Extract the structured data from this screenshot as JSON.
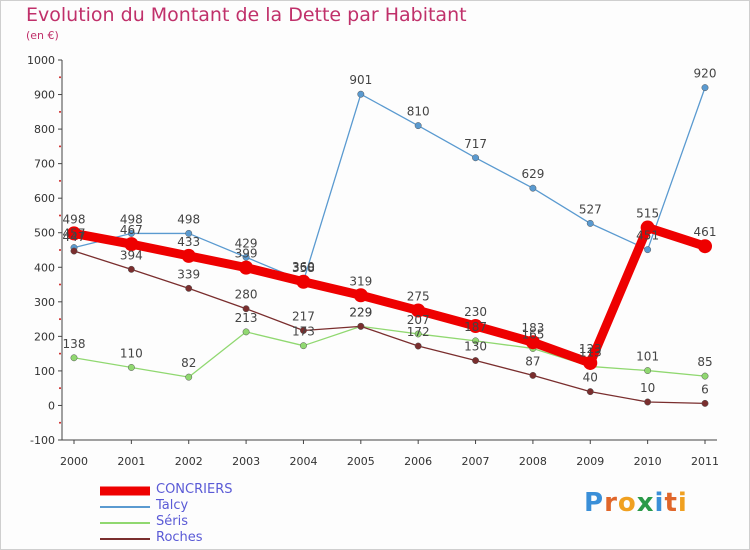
{
  "title": "Evolution du Montant de la Dette par Habitant",
  "subtitle": "(en €)",
  "logo": {
    "text": "Proxiti",
    "colors": [
      "#3a8fd8",
      "#e0662a",
      "#f0a020",
      "#2a9a48",
      "#3a8fd8",
      "#e0662a",
      "#f0a020"
    ]
  },
  "chart_data": {
    "type": "line",
    "categories": [
      "2000",
      "2001",
      "2002",
      "2003",
      "2004",
      "2005",
      "2006",
      "2007",
      "2008",
      "2009",
      "2010",
      "2011"
    ],
    "ylim": [
      -100,
      1000
    ],
    "yticks": [
      "-100",
      "0",
      "100",
      "200",
      "300",
      "400",
      "500",
      "600",
      "700",
      "800",
      "900",
      "1000"
    ],
    "xlabel": "",
    "ylabel": "",
    "grid": false,
    "legend_position": "bottom-left",
    "series": [
      {
        "name": "CONCRIERS",
        "color": "#ee0000",
        "values": [
          498,
          467,
          433,
          399,
          358,
          319,
          275,
          230,
          183,
          123,
          515,
          461
        ],
        "labels": [
          "498",
          "467",
          "433",
          "399",
          "358",
          "319",
          "275",
          "230",
          "183",
          "123",
          "515",
          "461"
        ]
      },
      {
        "name": "Talcy",
        "color": "#5a9ad0",
        "values": [
          457,
          498,
          498,
          429,
          360,
          901,
          810,
          717,
          629,
          527,
          451,
          920
        ],
        "labels": [
          "457",
          "498",
          "498",
          "429",
          "360",
          "901",
          "810",
          "717",
          "629",
          "527",
          "451",
          "920"
        ]
      },
      {
        "name": "Séris",
        "color": "#90d870",
        "values": [
          138,
          110,
          82,
          213,
          173,
          229,
          207,
          187,
          165,
          113,
          101,
          85
        ],
        "labels": [
          "138",
          "110",
          "82",
          "213",
          "173",
          "229",
          "207",
          "187",
          "165",
          "113",
          "101",
          "85"
        ]
      },
      {
        "name": "Roches",
        "color": "#7a2e2e",
        "values": [
          447,
          394,
          339,
          280,
          217,
          229,
          172,
          130,
          87,
          40,
          10,
          6
        ],
        "labels": [
          "447",
          "394",
          "339",
          "280",
          "217",
          "229",
          "172",
          "130",
          "87",
          "40",
          "10",
          "6"
        ]
      }
    ]
  }
}
